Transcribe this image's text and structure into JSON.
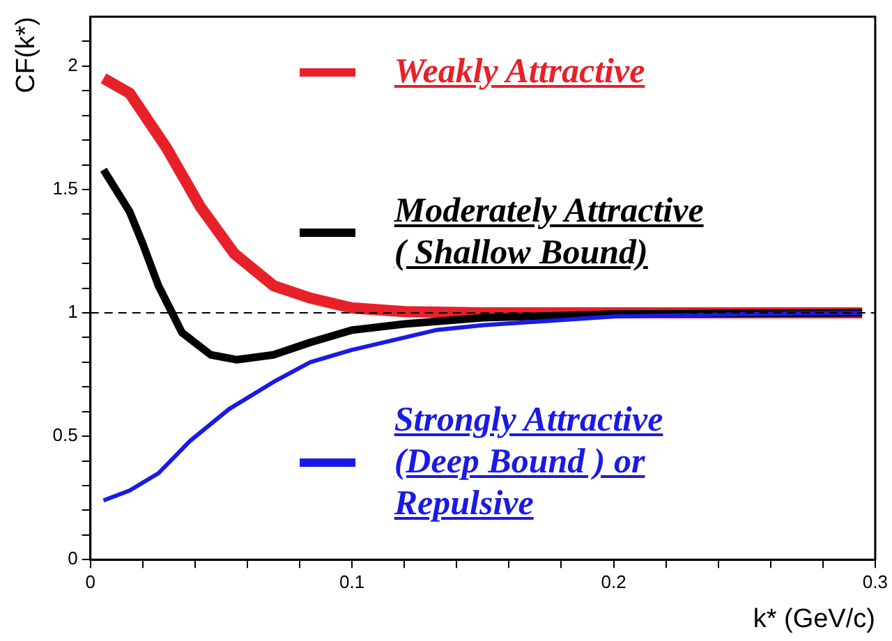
{
  "chart_data": {
    "type": "line",
    "xlabel": "k* (GeV/c)",
    "ylabel": "CF(k*)",
    "xlim": [
      0,
      0.3
    ],
    "ylim": [
      0,
      2.2
    ],
    "xticks": [
      0,
      {
        "value": 0.02,
        "label": null
      },
      {
        "value": 0.04,
        "label": null
      },
      {
        "value": 0.06,
        "label": null
      },
      {
        "value": 0.08,
        "label": null
      },
      0.1,
      {
        "value": 0.12,
        "label": null
      },
      {
        "value": 0.14,
        "label": null
      },
      {
        "value": 0.16,
        "label": null
      },
      {
        "value": 0.18,
        "label": null
      },
      0.2,
      {
        "value": 0.22,
        "label": null
      },
      {
        "value": 0.24,
        "label": null
      },
      {
        "value": 0.26,
        "label": null
      },
      {
        "value": 0.28,
        "label": null
      },
      0.3
    ],
    "yticks": [
      0,
      {
        "value": 0.1,
        "label": null
      },
      {
        "value": 0.2,
        "label": null
      },
      {
        "value": 0.3,
        "label": null
      },
      {
        "value": 0.4,
        "label": null
      },
      0.5,
      {
        "value": 0.6,
        "label": null
      },
      {
        "value": 0.7,
        "label": null
      },
      {
        "value": 0.8,
        "label": null
      },
      {
        "value": 0.9,
        "label": null
      },
      1,
      {
        "value": 1.1,
        "label": null
      },
      {
        "value": 1.2,
        "label": null
      },
      {
        "value": 1.3,
        "label": null
      },
      {
        "value": 1.4,
        "label": null
      },
      1.5,
      {
        "value": 1.6,
        "label": null
      },
      {
        "value": 1.7,
        "label": null
      },
      {
        "value": 1.8,
        "label": null
      },
      {
        "value": 1.9,
        "label": null
      },
      2,
      {
        "value": 2.1,
        "label": null
      }
    ],
    "marker": "none",
    "line_style": "solid",
    "legend": "right",
    "ref_lines": [
      {
        "axis": "y",
        "value": 1,
        "color": "#000000",
        "line_style": "dashed"
      }
    ],
    "series": [
      {
        "name": "Weakly Attractive",
        "color": "#e8202a",
        "x": [
          0.005,
          0.015,
          0.029,
          0.042,
          0.055,
          0.07,
          0.084,
          0.1,
          0.12,
          0.15,
          0.2,
          0.295
        ],
        "values": [
          1.95,
          1.89,
          1.67,
          1.43,
          1.24,
          1.11,
          1.06,
          1.02,
          1.005,
          1.0,
          1.0,
          1.0
        ]
      },
      {
        "name": "Moderately Attractive\n( Shallow Bound)",
        "color": "#000000",
        "x": [
          0.005,
          0.015,
          0.02,
          0.026,
          0.035,
          0.046,
          0.056,
          0.07,
          0.084,
          0.1,
          0.12,
          0.15,
          0.2,
          0.295
        ],
        "values": [
          1.58,
          1.41,
          1.28,
          1.11,
          0.92,
          0.83,
          0.81,
          0.83,
          0.88,
          0.93,
          0.955,
          0.98,
          0.995,
          1.0
        ]
      },
      {
        "name": "Strongly Attractive\n(Deep Bound ) or\nRepulsive",
        "color": "#1a1ae6",
        "x": [
          0.005,
          0.015,
          0.026,
          0.038,
          0.053,
          0.07,
          0.084,
          0.1,
          0.132,
          0.15,
          0.2,
          0.25,
          0.295
        ],
        "values": [
          0.24,
          0.28,
          0.35,
          0.48,
          0.61,
          0.72,
          0.8,
          0.85,
          0.93,
          0.95,
          0.985,
          0.995,
          1.0
        ]
      }
    ]
  }
}
